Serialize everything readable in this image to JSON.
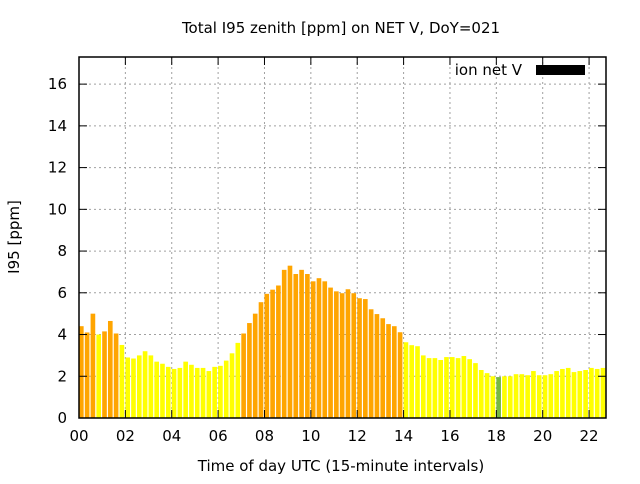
{
  "chart_data": {
    "type": "bar",
    "title": "Total I95 zenith [ppm] on NET V, DoY=021",
    "xlabel": "Time of day UTC (15-minute intervals)",
    "ylabel": "I95 [ppm]",
    "xlim": [
      0,
      22.73
    ],
    "ylim": [
      0,
      17.3
    ],
    "grid": true,
    "legend": {
      "label": "ion net V",
      "color": "#000000",
      "placement": "top-right"
    },
    "x_ticks": [
      "00",
      "02",
      "04",
      "06",
      "08",
      "10",
      "12",
      "14",
      "16",
      "18",
      "20",
      "22"
    ],
    "x_tick_values": [
      0,
      2,
      4,
      6,
      8,
      10,
      12,
      14,
      16,
      18,
      20,
      22
    ],
    "y_ticks": [
      "0",
      "2",
      "4",
      "6",
      "8",
      "10",
      "12",
      "14",
      "16"
    ],
    "y_tick_values": [
      0,
      2,
      4,
      6,
      8,
      10,
      12,
      14,
      16
    ],
    "interval_hours": 0.25,
    "palette": {
      "O": "#FFA500",
      "Y": "#FFFF00",
      "G": "#77B843"
    },
    "values": [
      4.4,
      4.1,
      5.0,
      4.0,
      4.15,
      4.65,
      4.05,
      3.5,
      2.9,
      2.85,
      3.0,
      3.2,
      3.0,
      2.7,
      2.6,
      2.45,
      2.35,
      2.4,
      2.7,
      2.55,
      2.4,
      2.4,
      2.25,
      2.45,
      2.5,
      2.75,
      3.1,
      3.6,
      4.05,
      4.55,
      5.0,
      5.55,
      5.95,
      6.15,
      6.35,
      7.1,
      7.3,
      6.9,
      7.1,
      6.9,
      6.55,
      6.7,
      6.55,
      6.25,
      6.07,
      5.98,
      6.17,
      5.98,
      5.74,
      5.7,
      5.21,
      4.98,
      4.78,
      4.5,
      4.4,
      4.11,
      3.63,
      3.49,
      3.44,
      3.0,
      2.87,
      2.87,
      2.78,
      2.92,
      2.92,
      2.87,
      2.97,
      2.82,
      2.63,
      2.3,
      2.15,
      2.0,
      1.96,
      2.0,
      2.0,
      2.1,
      2.1,
      2.05,
      2.25,
      2.05,
      2.05,
      2.1,
      2.25,
      2.35,
      2.4,
      2.2,
      2.25,
      2.3,
      2.4,
      2.35,
      2.4
    ],
    "colors": [
      "O",
      "O",
      "O",
      "Y",
      "O",
      "O",
      "O",
      "Y",
      "Y",
      "Y",
      "Y",
      "Y",
      "Y",
      "Y",
      "Y",
      "Y",
      "Y",
      "Y",
      "Y",
      "Y",
      "Y",
      "Y",
      "Y",
      "Y",
      "Y",
      "Y",
      "Y",
      "Y",
      "O",
      "O",
      "O",
      "O",
      "O",
      "O",
      "O",
      "O",
      "O",
      "O",
      "O",
      "O",
      "O",
      "O",
      "O",
      "O",
      "O",
      "O",
      "O",
      "O",
      "O",
      "O",
      "O",
      "O",
      "O",
      "O",
      "O",
      "O",
      "Y",
      "Y",
      "Y",
      "Y",
      "Y",
      "Y",
      "Y",
      "Y",
      "Y",
      "Y",
      "Y",
      "Y",
      "Y",
      "Y",
      "Y",
      "Y",
      "G",
      "Y",
      "Y",
      "Y",
      "Y",
      "Y",
      "Y",
      "Y",
      "Y",
      "Y",
      "Y",
      "Y",
      "Y",
      "Y",
      "Y",
      "Y",
      "Y",
      "Y",
      "Y"
    ]
  }
}
